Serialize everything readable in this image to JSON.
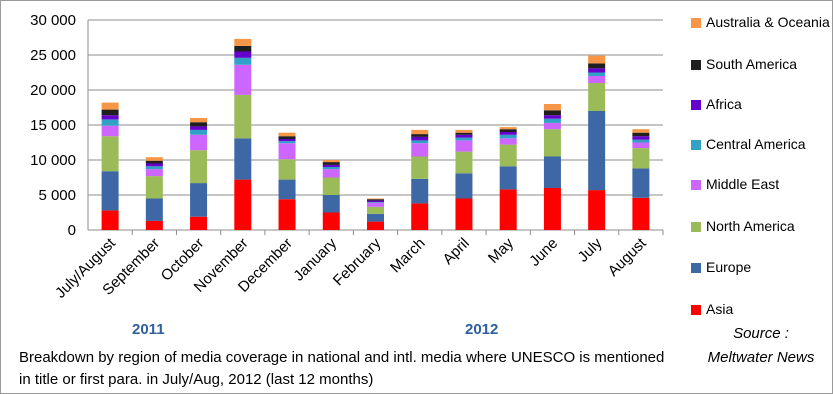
{
  "chart_data": {
    "type": "bar",
    "stacked": true,
    "categories": [
      "July/August",
      "September",
      "October",
      "November",
      "December",
      "January",
      "February",
      "March",
      "April",
      "May",
      "June",
      "July",
      "August"
    ],
    "ylim": [
      0,
      30000
    ],
    "yticks": [
      "0",
      "5 000",
      "10 000",
      "15 000",
      "20 000",
      "25 000",
      "30 000"
    ],
    "grid": true,
    "legend_position": "right",
    "series": [
      {
        "name": "Asia",
        "color": "#ff0000",
        "values": [
          2800,
          1300,
          1900,
          7200,
          4400,
          2500,
          1200,
          3800,
          4500,
          5800,
          6000,
          5700,
          4600
        ]
      },
      {
        "name": "Europe",
        "color": "#3e67a5",
        "values": [
          5600,
          3200,
          4800,
          5900,
          2800,
          2500,
          1100,
          3500,
          3600,
          3300,
          4500,
          11300,
          4200
        ]
      },
      {
        "name": "North America",
        "color": "#9bbb59",
        "values": [
          5000,
          3200,
          4700,
          6200,
          2900,
          2500,
          1000,
          3200,
          3100,
          3100,
          3900,
          4000,
          2900
        ]
      },
      {
        "name": "Middle East",
        "color": "#cc66ff",
        "values": [
          1500,
          1000,
          2200,
          4300,
          2300,
          1200,
          600,
          1900,
          1600,
          900,
          900,
          1000,
          800
        ]
      },
      {
        "name": "Central America",
        "color": "#31a1c6",
        "values": [
          900,
          400,
          700,
          1000,
          300,
          300,
          100,
          400,
          400,
          500,
          600,
          500,
          400
        ]
      },
      {
        "name": "Africa",
        "color": "#6600cc",
        "values": [
          600,
          400,
          500,
          900,
          300,
          300,
          200,
          500,
          400,
          400,
          500,
          600,
          500
        ]
      },
      {
        "name": "South America",
        "color": "#1f1f1f",
        "values": [
          800,
          400,
          600,
          800,
          400,
          400,
          200,
          400,
          300,
          400,
          700,
          700,
          500
        ]
      },
      {
        "name": "Australia & Oceania",
        "color": "#f79646",
        "values": [
          1000,
          500,
          600,
          1000,
          500,
          300,
          100,
          600,
          400,
          300,
          900,
          1100,
          500
        ]
      }
    ],
    "year_labels": [
      "2011",
      "2012"
    ]
  },
  "legend_items": [
    {
      "label": "Australia & Oceania",
      "color": "#f79646"
    },
    {
      "label": "South America",
      "color": "#1f1f1f"
    },
    {
      "label": "Africa",
      "color": "#6600cc"
    },
    {
      "label": "Central America",
      "color": "#31a1c6"
    },
    {
      "label": "Middle East",
      "color": "#cc66ff"
    },
    {
      "label": "North America",
      "color": "#9bbb59"
    },
    {
      "label": "Europe",
      "color": "#3e67a5"
    },
    {
      "label": "Asia",
      "color": "#ff0000"
    }
  ],
  "footnote": "Breakdown by region of media coverage in national and intl. media  where UNESCO is mentioned in title or first para. in July/Aug, 2012 (last 12 months)",
  "source": "Source : Meltwater News"
}
